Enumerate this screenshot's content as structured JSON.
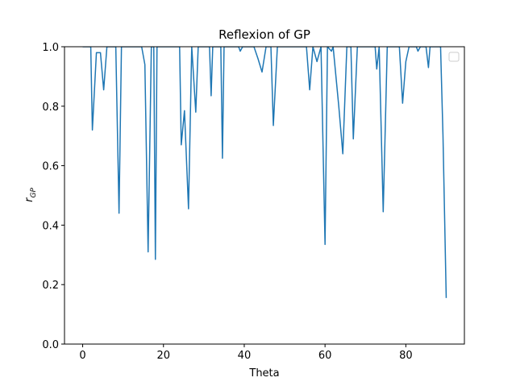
{
  "chart_data": {
    "type": "line",
    "title": "Reflexion of GP",
    "xlabel": "Theta",
    "ylabel": "r",
    "ylabel_sub": "GP",
    "x": [
      0,
      2,
      2.4,
      3.4,
      4.4,
      5.2,
      6,
      8.2,
      9,
      9.6,
      14.6,
      15.4,
      16.2,
      17,
      17.6,
      18,
      18.4,
      24,
      24.4,
      25.2,
      26.2,
      27,
      28,
      28.6,
      31.4,
      31.8,
      32.2,
      34.2,
      34.6,
      35,
      38.6,
      39,
      39.6,
      42.4,
      43.4,
      44.4,
      45.4,
      46.6,
      47.2,
      48.2,
      55.4,
      56.2,
      57,
      58,
      59,
      60,
      60.6,
      61.6,
      62,
      63.4,
      64.4,
      65.4,
      66.4,
      67,
      68,
      72.4,
      72.8,
      73.4,
      74.4,
      75.4,
      78.4,
      79.2,
      80,
      80.8,
      82.6,
      83,
      83.6,
      85,
      85.6,
      86,
      88.6,
      89.2,
      90
    ],
    "series": [
      {
        "color": "#1f77b4",
        "values": [
          1,
          1,
          0.72,
          0.98,
          0.98,
          0.855,
          1,
          1,
          0.44,
          1,
          1,
          0.94,
          0.31,
          1,
          1,
          0.285,
          1,
          1,
          0.67,
          0.785,
          0.455,
          1,
          0.78,
          1,
          1,
          0.835,
          1,
          1,
          0.625,
          1,
          1,
          0.985,
          1,
          1,
          0.96,
          0.915,
          1,
          1,
          0.735,
          1,
          1,
          0.855,
          1,
          0.95,
          1,
          0.335,
          1,
          0.985,
          1,
          0.8,
          0.64,
          1,
          1,
          0.69,
          1,
          1,
          0.925,
          1,
          0.445,
          1,
          1,
          0.81,
          0.95,
          1,
          1,
          0.985,
          1,
          1,
          0.93,
          1,
          1,
          0.7,
          0.155
        ]
      }
    ],
    "xlim": [
      -4.5,
      94.5
    ],
    "ylim": [
      0,
      1
    ],
    "xticks": [
      0,
      20,
      40,
      60,
      80
    ],
    "yticks": [
      {
        "value": 0,
        "label": "0.0"
      },
      0.2,
      0.4,
      0.6,
      0.8,
      {
        "value": 1,
        "label": "1.0"
      }
    ],
    "legend": "upper right"
  }
}
